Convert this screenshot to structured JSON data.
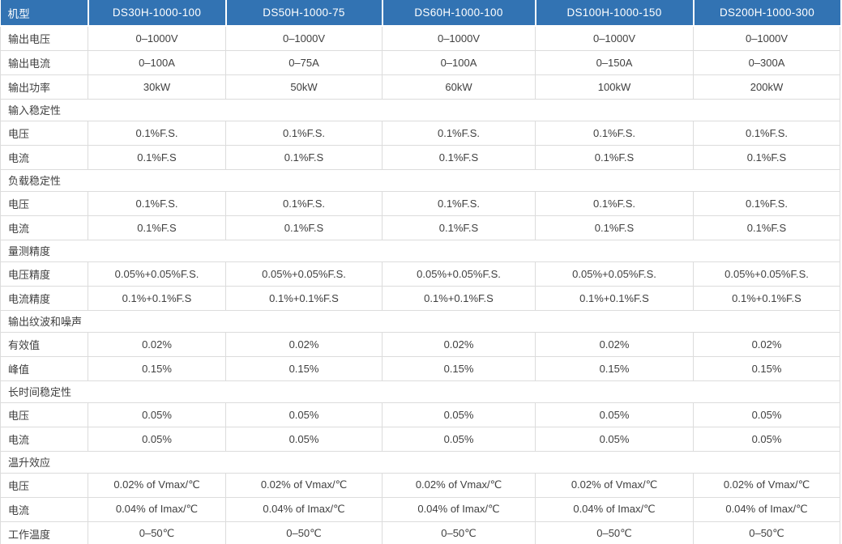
{
  "colors": {
    "header_bg": "#3273B3",
    "header_text": "#FFFFFF",
    "grid_line": "#DCDCDC",
    "body_text": "#404040",
    "bottom_strip": "#EDEDED"
  },
  "table": {
    "header": {
      "label": "机型",
      "models": [
        "DS30H-1000-100",
        "DS50H-1000-75",
        "DS60H-1000-100",
        "DS100H-1000-150",
        "DS200H-1000-300"
      ]
    },
    "rows": [
      {
        "type": "data",
        "label": "输出电压",
        "values": [
          "0–1000V",
          "0–1000V",
          "0–1000V",
          "0–1000V",
          "0–1000V"
        ]
      },
      {
        "type": "data",
        "label": "输出电流",
        "values": [
          "0–100A",
          "0–75A",
          "0–100A",
          "0–150A",
          "0–300A"
        ]
      },
      {
        "type": "data",
        "label": "输出功率",
        "values": [
          "30kW",
          "50kW",
          "60kW",
          "100kW",
          "200kW"
        ]
      },
      {
        "type": "section",
        "label": "输入稳定性"
      },
      {
        "type": "data",
        "label": "电压",
        "values": [
          "0.1%F.S.",
          "0.1%F.S.",
          "0.1%F.S.",
          "0.1%F.S.",
          "0.1%F.S."
        ]
      },
      {
        "type": "data",
        "label": "电流",
        "values": [
          "0.1%F.S",
          "0.1%F.S",
          "0.1%F.S",
          "0.1%F.S",
          "0.1%F.S"
        ]
      },
      {
        "type": "section",
        "label": "负载稳定性"
      },
      {
        "type": "data",
        "label": "电压",
        "values": [
          "0.1%F.S.",
          "0.1%F.S.",
          "0.1%F.S.",
          "0.1%F.S.",
          "0.1%F.S."
        ]
      },
      {
        "type": "data",
        "label": "电流",
        "values": [
          "0.1%F.S",
          "0.1%F.S",
          "0.1%F.S",
          "0.1%F.S",
          "0.1%F.S"
        ]
      },
      {
        "type": "section",
        "label": "量测精度"
      },
      {
        "type": "data",
        "label": "电压精度",
        "values": [
          "0.05%+0.05%F.S.",
          "0.05%+0.05%F.S.",
          "0.05%+0.05%F.S.",
          "0.05%+0.05%F.S.",
          "0.05%+0.05%F.S."
        ]
      },
      {
        "type": "data",
        "label": "电流精度",
        "values": [
          "0.1%+0.1%F.S",
          "0.1%+0.1%F.S",
          "0.1%+0.1%F.S",
          "0.1%+0.1%F.S",
          "0.1%+0.1%F.S"
        ]
      },
      {
        "type": "section",
        "label": "输出纹波和噪声"
      },
      {
        "type": "data",
        "label": "有效值",
        "values": [
          "0.02%",
          "0.02%",
          "0.02%",
          "0.02%",
          "0.02%"
        ]
      },
      {
        "type": "data",
        "label": "峰值",
        "values": [
          "0.15%",
          "0.15%",
          "0.15%",
          "0.15%",
          "0.15%"
        ]
      },
      {
        "type": "section",
        "label": "长时间稳定性"
      },
      {
        "type": "data",
        "label": "电压",
        "values": [
          "0.05%",
          "0.05%",
          "0.05%",
          "0.05%",
          "0.05%"
        ]
      },
      {
        "type": "data",
        "label": "电流",
        "values": [
          "0.05%",
          "0.05%",
          "0.05%",
          "0.05%",
          "0.05%"
        ]
      },
      {
        "type": "section",
        "label": "温升效应"
      },
      {
        "type": "data",
        "label": "电压",
        "values": [
          "0.02% of Vmax/℃",
          "0.02% of Vmax/℃",
          "0.02% of Vmax/℃",
          "0.02% of Vmax/℃",
          "0.02% of Vmax/℃"
        ]
      },
      {
        "type": "data",
        "label": "电流",
        "values": [
          "0.04% of Imax/℃",
          "0.04% of Imax/℃",
          "0.04% of Imax/℃",
          "0.04% of Imax/℃",
          "0.04% of Imax/℃"
        ]
      },
      {
        "type": "data",
        "label": "工作温度",
        "values": [
          "0–50℃",
          "0–50℃",
          "0–50℃",
          "0–50℃",
          "0–50℃"
        ]
      }
    ]
  }
}
